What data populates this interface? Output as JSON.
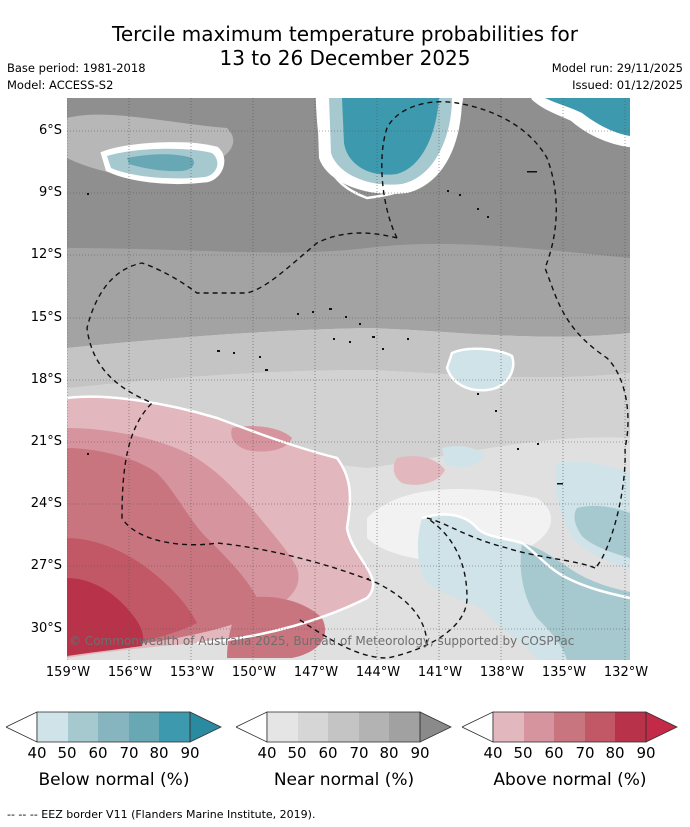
{
  "title_line1": "Tercile maximum temperature probabilities for",
  "title_line2": "13 to 26 December 2025",
  "base_period": "Base period: 1981-2018",
  "model": "Model: ACCESS-S2",
  "model_run": "Model run: 29/11/2025",
  "issued": "Issued: 01/12/2025",
  "lat_labels": [
    "6°S",
    "9°S",
    "12°S",
    "15°S",
    "18°S",
    "21°S",
    "24°S",
    "27°S",
    "30°S"
  ],
  "lon_labels": [
    "159°W",
    "156°W",
    "153°W",
    "150°W",
    "147°W",
    "144°W",
    "141°W",
    "138°W",
    "135°W",
    "132°W"
  ],
  "copyright": "© Commonwealth of Australia 2025, Bureau of Meteorology, supported by COSPPac",
  "colorbars": [
    {
      "title": "Below normal (%)",
      "ticks": [
        "40",
        "50",
        "60",
        "70",
        "80",
        "90"
      ],
      "colors": [
        "#cfe3e8",
        "#a6c8cf",
        "#86b5c0",
        "#68a7b4",
        "#3d9aae",
        "#2a8aa0"
      ]
    },
    {
      "title": "Near normal (%)",
      "ticks": [
        "40",
        "50",
        "60",
        "70",
        "80",
        "90"
      ],
      "colors": [
        "#e5e5e5",
        "#d6d6d6",
        "#c4c4c4",
        "#b3b3b3",
        "#a1a1a1",
        "#8a8a8a"
      ]
    },
    {
      "title": "Above normal (%)",
      "ticks": [
        "40",
        "50",
        "60",
        "70",
        "80",
        "90"
      ],
      "colors": [
        "#e2b7be",
        "#d6959e",
        "#c97580",
        "#c25866",
        "#b8334a",
        "#c42a48"
      ]
    }
  ],
  "footer": "-- -- -- EEZ border V11 (Flanders Marine Institute, 2019)."
}
